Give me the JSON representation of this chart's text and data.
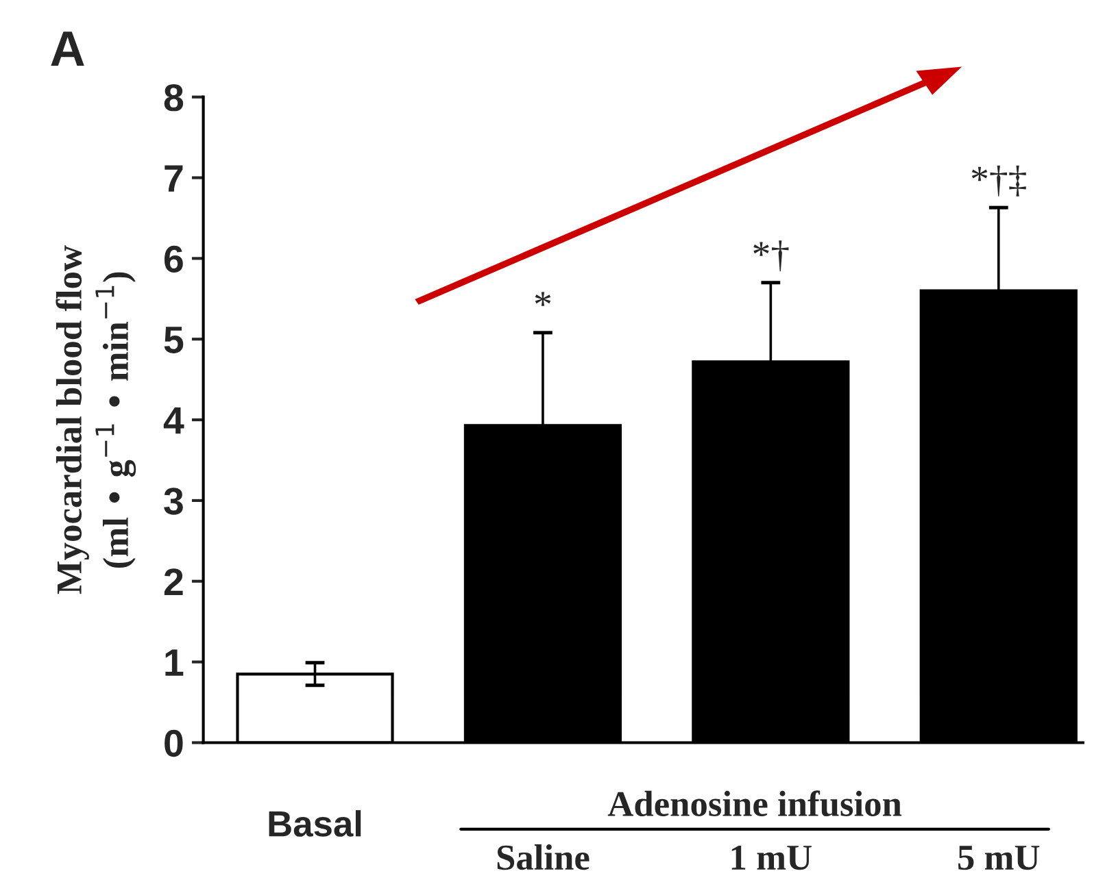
{
  "chart_data": {
    "type": "bar",
    "title": "A",
    "ylabel": "Myocardial blood flow\n(ml • g$^{−1}$ • min$^{−1}$)",
    "categories": [
      "Basal",
      "Saline",
      "1 mU",
      "5 mU"
    ],
    "values": [
      0.85,
      3.93,
      4.72,
      5.6
    ],
    "colors": [
      "#ffffff",
      "#000000",
      "#000000",
      "#000000"
    ],
    "errors": [
      0.14,
      1.15,
      0.98,
      1.03
    ],
    "ylim": [
      0,
      8
    ],
    "yticks": [
      0,
      1,
      2,
      3,
      4,
      5,
      6,
      7,
      8
    ],
    "grid": false,
    "legend": false,
    "annotations": [
      "*",
      "*†",
      "*†‡",
      "Adenosine infusion"
    ]
  }
}
